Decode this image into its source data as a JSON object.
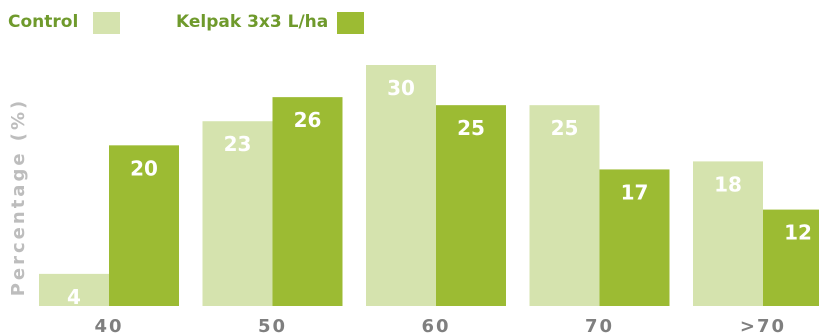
{
  "chart_data": {
    "type": "bar",
    "categories": [
      "40",
      "50",
      "60",
      "70",
      ">70"
    ],
    "series": [
      {
        "name": "Control",
        "values": [
          4,
          23,
          30,
          25,
          18
        ],
        "color": "#d5e3ae"
      },
      {
        "name": "Kelpak 3x3 L/ha",
        "values": [
          20,
          26,
          25,
          17,
          12
        ],
        "color": "#9cbb33"
      }
    ],
    "ylabel": "Percentage (%)",
    "xlabel": "",
    "ylim": [
      0,
      30
    ],
    "grid": false,
    "legend_position": "top-left",
    "legend_text_color": "#6f9a2c"
  }
}
